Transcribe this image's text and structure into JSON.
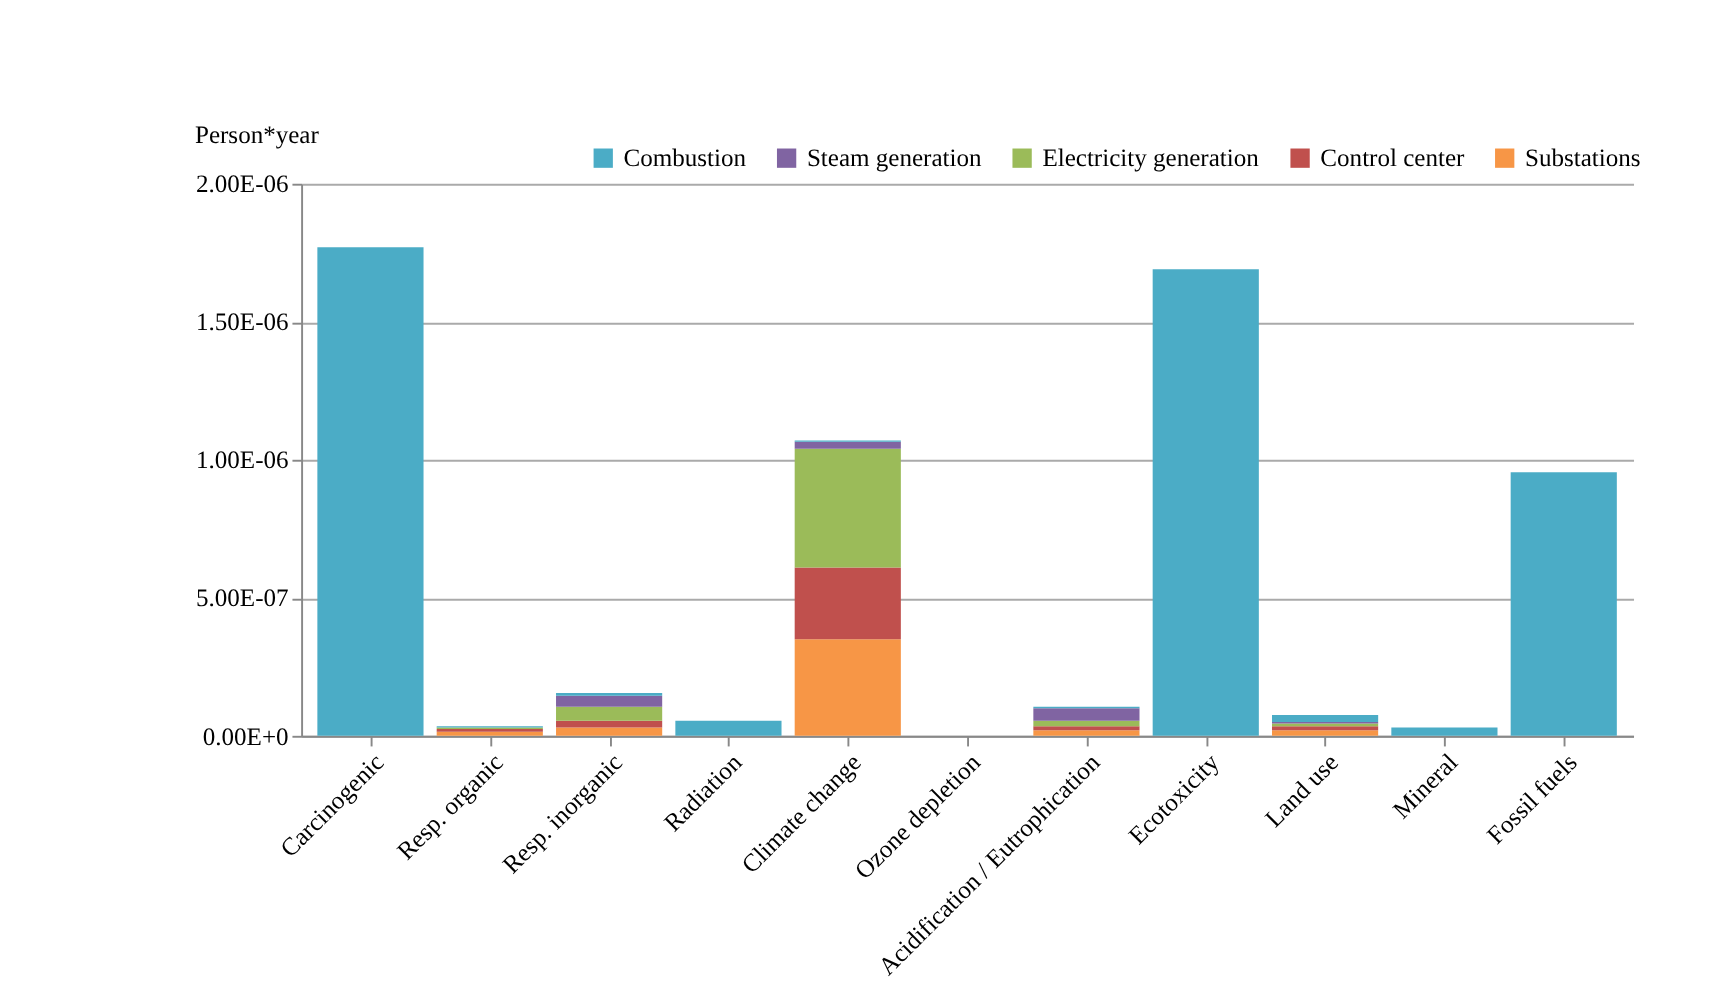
{
  "chart_data": {
    "type": "bar",
    "stacked": true,
    "ylabel": "Person*year",
    "categories": [
      "Carcinogenic",
      "Resp. organic",
      "Resp. inorganic",
      "Radiation",
      "Climate change",
      "Ozone depletion",
      "Acidification / Eutrophication",
      "Ecotoxicity",
      "Land use",
      "Mineral",
      "Fossil fuels"
    ],
    "series": [
      {
        "name": "Substations",
        "color": "#f79646",
        "values": [
          0,
          1.5e-08,
          3e-08,
          0,
          3.5e-07,
          0,
          2e-08,
          0,
          2e-08,
          0,
          0
        ]
      },
      {
        "name": "Control center",
        "color": "#c0504d",
        "values": [
          0,
          1e-08,
          2.5e-08,
          0,
          2.6e-07,
          0,
          1.5e-08,
          0,
          1.5e-08,
          0,
          0
        ]
      },
      {
        "name": "Electricity generation",
        "color": "#9bbb59",
        "values": [
          0,
          5e-09,
          5e-08,
          0,
          4.3e-07,
          0,
          2e-08,
          0,
          1e-08,
          0,
          0
        ]
      },
      {
        "name": "Steam generation",
        "color": "#8064a2",
        "values": [
          0,
          0,
          4e-08,
          0,
          2.5e-08,
          0,
          4.5e-08,
          0,
          5e-09,
          0,
          0
        ]
      },
      {
        "name": "Combustion",
        "color": "#4bacc6",
        "values": [
          1.77e-06,
          5e-09,
          1e-08,
          5.5e-08,
          5e-09,
          0,
          5e-09,
          1.69e-06,
          2.5e-08,
          3e-08,
          9.55e-07
        ]
      }
    ],
    "ylim": [
      0,
      2e-06
    ],
    "yticks": [
      {
        "value": 0,
        "label": "0.00E+0"
      },
      {
        "value": 5e-07,
        "label": "5.00E-07"
      },
      {
        "value": 1e-06,
        "label": "1.00E-06"
      },
      {
        "value": 1.5e-06,
        "label": "1.50E-06"
      },
      {
        "value": 2e-06,
        "label": "2.00E-06"
      }
    ],
    "grid": "y",
    "legend": "top"
  }
}
